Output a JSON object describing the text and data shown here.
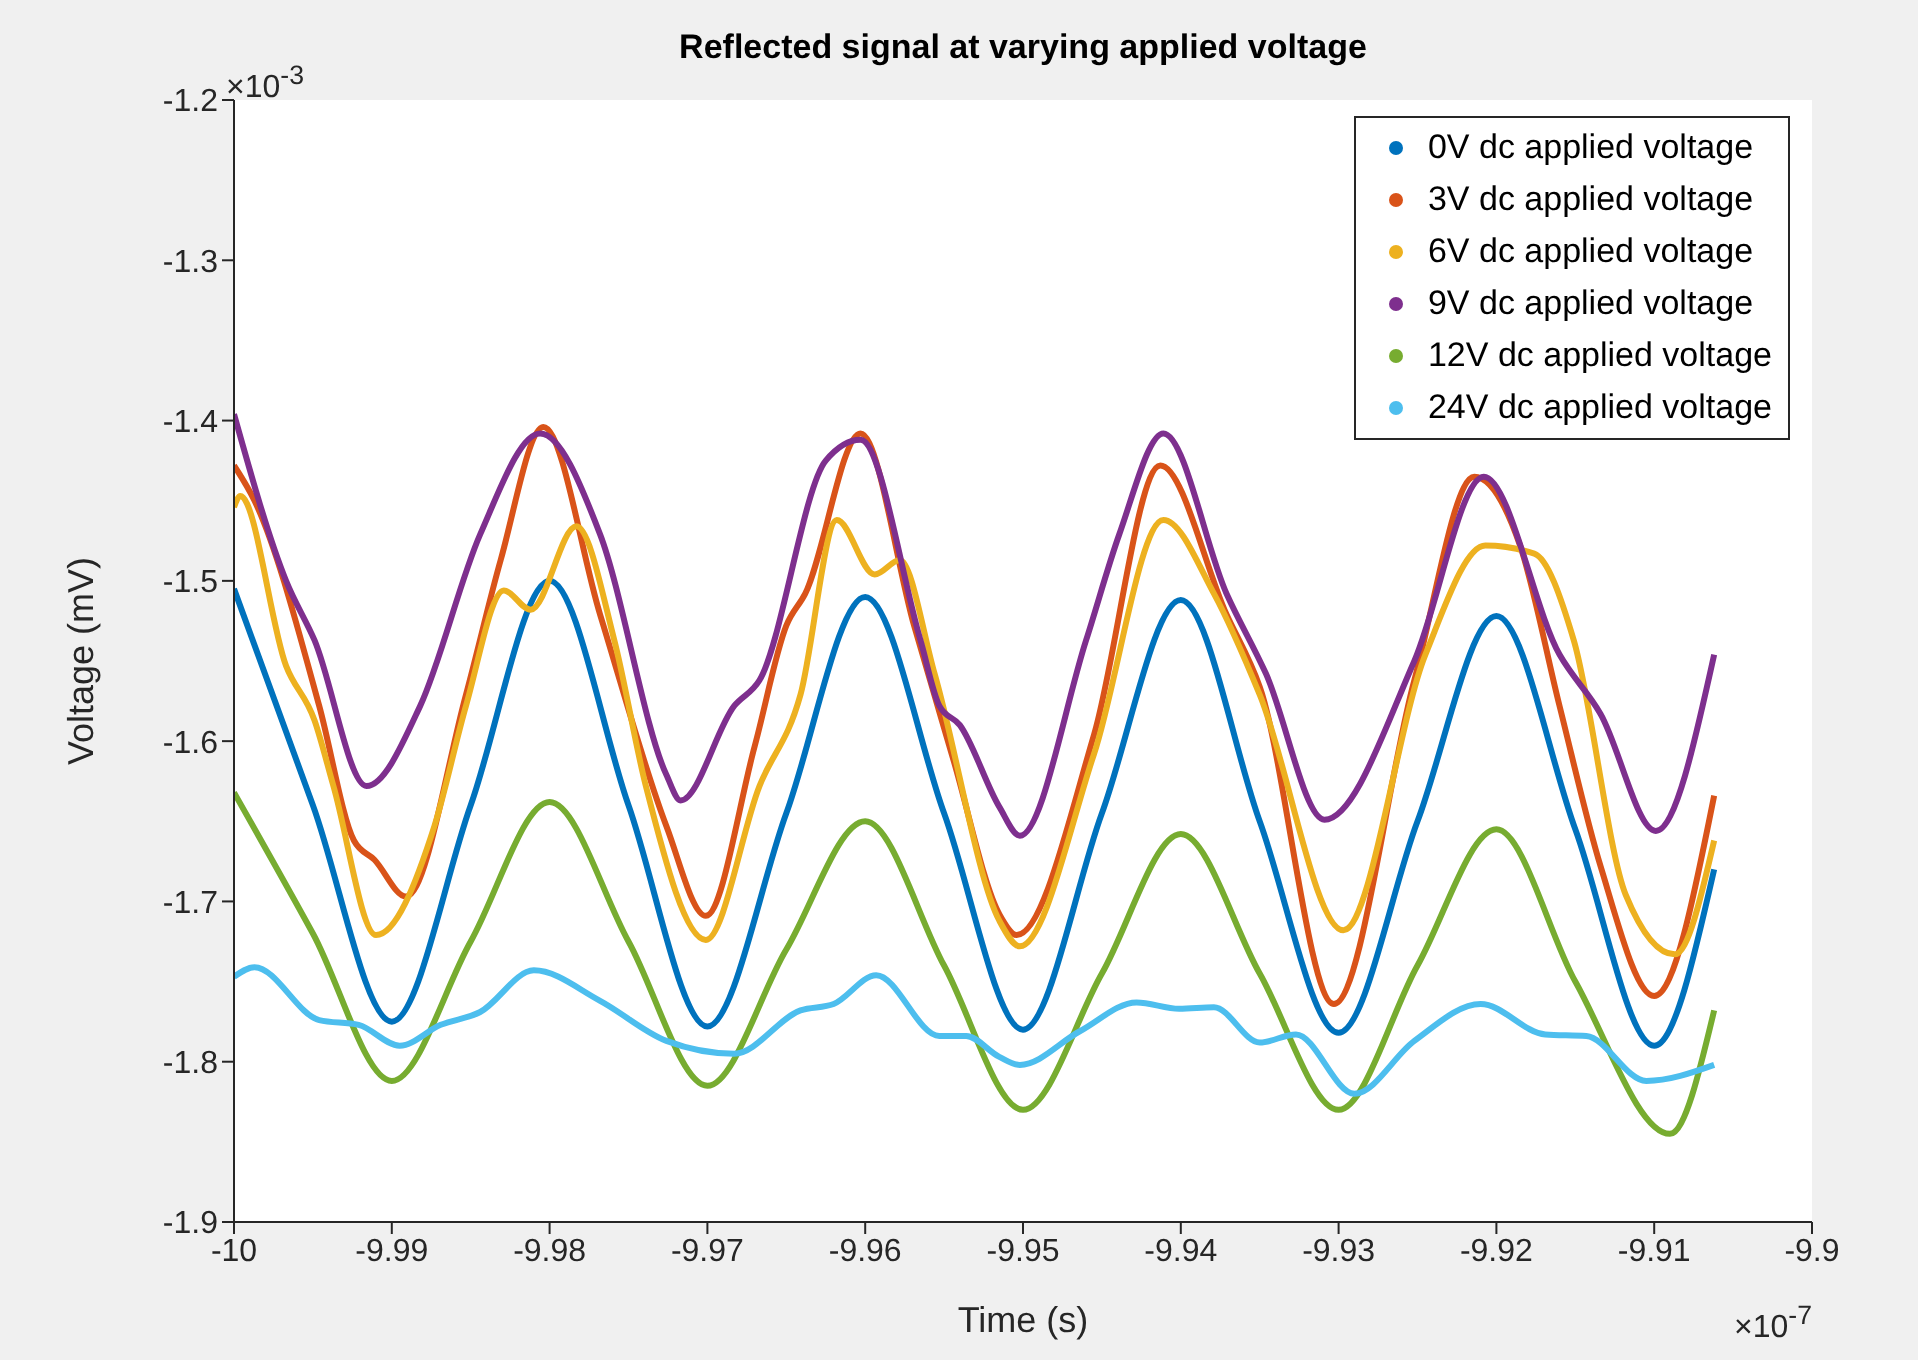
{
  "chart_data": {
    "type": "line",
    "title": "Reflected signal at varying applied voltage",
    "xlabel": "Time (s)",
    "ylabel": "Voltage (mV)",
    "annotations": [
      "×10$^{-3}$",
      "×10$^{-7}$"
    ],
    "xlim": [
      -10,
      -9.9
    ],
    "xticks": [
      -10,
      -9.99,
      -9.98,
      -9.97,
      -9.96,
      -9.95,
      -9.94,
      -9.93,
      -9.92,
      -9.91,
      -9.9
    ],
    "ylim": [
      -1.9,
      -1.2
    ],
    "yticks": [
      -1.9,
      -1.8,
      -1.7,
      -1.6,
      -1.5,
      -1.4,
      -1.3,
      -1.2
    ],
    "legend": "top right",
    "grid": false,
    "marker": "none",
    "line_style": "solid",
    "series": [
      {
        "name": "0V dc applied voltage",
        "color": "#0072bd",
        "x": [
          -10,
          -9.995,
          -9.99,
          -9.985,
          -9.98,
          -9.975,
          -9.97,
          -9.965,
          -9.96,
          -9.955,
          -9.95,
          -9.945,
          -9.94,
          -9.935,
          -9.93,
          -9.925,
          -9.92,
          -9.915,
          -9.91,
          -9.9062
        ],
        "values": [
          -1.505,
          -1.64,
          -1.775,
          -1.64,
          -1.5,
          -1.64,
          -1.778,
          -1.645,
          -1.51,
          -1.645,
          -1.78,
          -1.645,
          -1.512,
          -1.65,
          -1.782,
          -1.65,
          -1.522,
          -1.655,
          -1.79,
          -1.68
        ]
      },
      {
        "name": "3V dc applied voltage",
        "color": "#d95319",
        "x": [
          -10,
          -9.9987,
          -9.9946,
          -9.9924,
          -9.9911,
          -9.9891,
          -9.9853,
          -9.9831,
          -9.9804,
          -9.9768,
          -9.9726,
          -9.9701,
          -9.967,
          -9.965,
          -9.9638,
          -9.9603,
          -9.9569,
          -9.9544,
          -9.9515,
          -9.9504,
          -9.9455,
          -9.9413,
          -9.9371,
          -9.935,
          -9.9303,
          -9.9252,
          -9.9214,
          -9.9185,
          -9.916,
          -9.9134,
          -9.91,
          -9.9062
        ],
        "values": [
          -1.428,
          -1.45,
          -1.578,
          -1.662,
          -1.674,
          -1.697,
          -1.571,
          -1.487,
          -1.404,
          -1.521,
          -1.653,
          -1.709,
          -1.603,
          -1.528,
          -1.508,
          -1.408,
          -1.528,
          -1.612,
          -1.708,
          -1.721,
          -1.596,
          -1.428,
          -1.521,
          -1.566,
          -1.764,
          -1.562,
          -1.435,
          -1.478,
          -1.578,
          -1.678,
          -1.759,
          -1.634
        ]
      },
      {
        "name": "6V dc applied voltage",
        "color": "#edb120",
        "x": [
          -10,
          -9.9996,
          -9.9967,
          -9.9949,
          -9.9937,
          -9.991,
          -9.9873,
          -9.9853,
          -9.9829,
          -9.9812,
          -9.9783,
          -9.9759,
          -9.9739,
          -9.9701,
          -9.9667,
          -9.9641,
          -9.9618,
          -9.9594,
          -9.9578,
          -9.9556,
          -9.9515,
          -9.9502,
          -9.9455,
          -9.9411,
          -9.9379,
          -9.935,
          -9.9297,
          -9.9245,
          -9.9207,
          -9.9176,
          -9.9151,
          -9.9118,
          -9.9087,
          -9.9062
        ],
        "values": [
          -1.454,
          -1.447,
          -1.553,
          -1.587,
          -1.628,
          -1.721,
          -1.653,
          -1.578,
          -1.506,
          -1.518,
          -1.466,
          -1.537,
          -1.628,
          -1.724,
          -1.628,
          -1.571,
          -1.462,
          -1.496,
          -1.487,
          -1.558,
          -1.712,
          -1.728,
          -1.608,
          -1.462,
          -1.508,
          -1.571,
          -1.718,
          -1.546,
          -1.478,
          -1.483,
          -1.537,
          -1.696,
          -1.733,
          -1.662
        ]
      },
      {
        "name": "9V dc applied voltage",
        "color": "#7e2f8e",
        "x": [
          -10,
          -9.9967,
          -9.9949,
          -9.9916,
          -9.9882,
          -9.9844,
          -9.9806,
          -9.9768,
          -9.9726,
          -9.9717,
          -9.9683,
          -9.9667,
          -9.9625,
          -9.9603,
          -9.9565,
          -9.9553,
          -9.954,
          -9.9515,
          -9.9502,
          -9.946,
          -9.9439,
          -9.9411,
          -9.9371,
          -9.9346,
          -9.9309,
          -9.9252,
          -9.9208,
          -9.916,
          -9.9134,
          -9.9099,
          -9.9062
        ],
        "values": [
          -1.396,
          -1.5,
          -1.537,
          -1.628,
          -1.578,
          -1.471,
          -1.408,
          -1.471,
          -1.621,
          -1.637,
          -1.578,
          -1.562,
          -1.425,
          -1.412,
          -1.537,
          -1.578,
          -1.59,
          -1.641,
          -1.659,
          -1.537,
          -1.471,
          -1.408,
          -1.508,
          -1.558,
          -1.649,
          -1.55,
          -1.435,
          -1.546,
          -1.583,
          -1.656,
          -1.546
        ]
      },
      {
        "name": "12V dc applied voltage",
        "color": "#77ac30",
        "x": [
          -10,
          -9.995,
          -9.99,
          -9.985,
          -9.98,
          -9.975,
          -9.97,
          -9.965,
          -9.96,
          -9.955,
          -9.95,
          -9.945,
          -9.94,
          -9.935,
          -9.93,
          -9.925,
          -9.92,
          -9.915,
          -9.909,
          -9.9062
        ],
        "values": [
          -1.632,
          -1.72,
          -1.812,
          -1.725,
          -1.638,
          -1.725,
          -1.815,
          -1.73,
          -1.65,
          -1.74,
          -1.83,
          -1.745,
          -1.658,
          -1.745,
          -1.83,
          -1.74,
          -1.655,
          -1.75,
          -1.845,
          -1.768
        ]
      },
      {
        "name": "24V dc applied voltage",
        "color": "#4dbeee",
        "x": [
          -10,
          -9.9987,
          -9.9946,
          -9.9921,
          -9.9895,
          -9.9869,
          -9.9844,
          -9.981,
          -9.9768,
          -9.9726,
          -9.9683,
          -9.9641,
          -9.962,
          -9.9593,
          -9.9553,
          -9.9536,
          -9.9515,
          -9.9502,
          -9.9464,
          -9.9428,
          -9.9401,
          -9.9379,
          -9.935,
          -9.9327,
          -9.929,
          -9.9252,
          -9.921,
          -9.9169,
          -9.9143,
          -9.9105,
          -9.9062
        ],
        "values": [
          -1.747,
          -1.741,
          -1.774,
          -1.777,
          -1.79,
          -1.777,
          -1.769,
          -1.743,
          -1.762,
          -1.787,
          -1.795,
          -1.768,
          -1.764,
          -1.746,
          -1.784,
          -1.784,
          -1.797,
          -1.802,
          -1.781,
          -1.763,
          -1.767,
          -1.766,
          -1.788,
          -1.783,
          -1.82,
          -1.787,
          -1.764,
          -1.783,
          -1.784,
          -1.812,
          -1.802
        ]
      }
    ]
  }
}
